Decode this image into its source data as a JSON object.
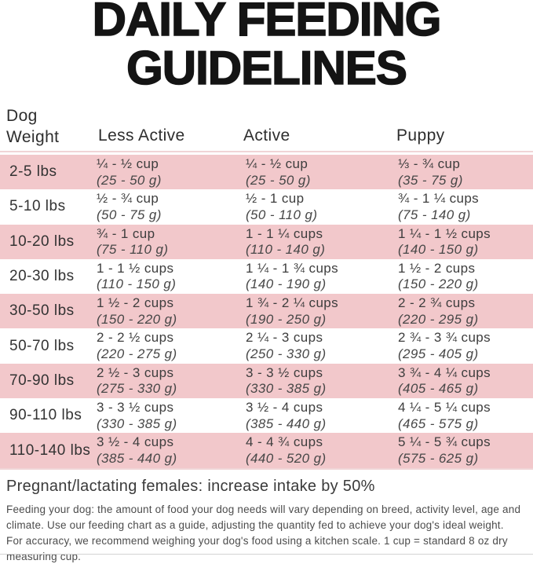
{
  "title": {
    "line1": "DAILY FEEDING",
    "line2": "GUIDELINES"
  },
  "header": {
    "weight_label_line1": "Dog",
    "weight_label_line2": "Weight",
    "columns": [
      "Less Active",
      "Active",
      "Puppy"
    ]
  },
  "table": {
    "rows": [
      {
        "weight": "2-5 lbs",
        "less_active": {
          "cups": "¼ - ½ cup",
          "grams": "(25 - 50 g)"
        },
        "active": {
          "cups": "¼ - ½ cup",
          "grams": "(25 - 50 g)"
        },
        "puppy": {
          "cups": "⅓ - ¾ cup",
          "grams": "(35 - 75 g)"
        }
      },
      {
        "weight": "5-10 lbs",
        "less_active": {
          "cups": "½ - ¾ cup",
          "grams": "(50 - 75 g)"
        },
        "active": {
          "cups": "½ - 1 cup",
          "grams": "(50 - 110 g)"
        },
        "puppy": {
          "cups": "¾ - 1 ¼ cups",
          "grams": "(75 - 140 g)"
        }
      },
      {
        "weight": "10-20 lbs",
        "less_active": {
          "cups": "¾ - 1 cup",
          "grams": "(75 - 110 g)"
        },
        "active": {
          "cups": "1 - 1 ¼ cups",
          "grams": "(110 - 140 g)"
        },
        "puppy": {
          "cups": "1 ¼ - 1 ½ cups",
          "grams": "(140 - 150 g)"
        }
      },
      {
        "weight": "20-30 lbs",
        "less_active": {
          "cups": "1 - 1 ½ cups",
          "grams": "(110 - 150 g)"
        },
        "active": {
          "cups": "1 ¼ - 1 ¾ cups",
          "grams": "(140 - 190 g)"
        },
        "puppy": {
          "cups": "1 ½ - 2 cups",
          "grams": "(150 - 220 g)"
        }
      },
      {
        "weight": "30-50 lbs",
        "less_active": {
          "cups": "1 ½ - 2 cups",
          "grams": "(150 - 220 g)"
        },
        "active": {
          "cups": "1 ¾ - 2 ¼ cups",
          "grams": "(190 - 250 g)"
        },
        "puppy": {
          "cups": "2 - 2 ¾ cups",
          "grams": "(220 - 295 g)"
        }
      },
      {
        "weight": "50-70 lbs",
        "less_active": {
          "cups": "2 - 2 ½ cups",
          "grams": "(220 - 275 g)"
        },
        "active": {
          "cups": "2 ¼ - 3 cups",
          "grams": "(250 - 330 g)"
        },
        "puppy": {
          "cups": "2 ¾ - 3 ¾ cups",
          "grams": "(295 - 405 g)"
        }
      },
      {
        "weight": "70-90 lbs",
        "less_active": {
          "cups": "2 ½ - 3 cups",
          "grams": "(275 - 330 g)"
        },
        "active": {
          "cups": "3 - 3 ½ cups",
          "grams": "(330 - 385 g)"
        },
        "puppy": {
          "cups": "3 ¾ - 4 ¼ cups",
          "grams": "(405 - 465 g)"
        }
      },
      {
        "weight": "90-110 lbs",
        "less_active": {
          "cups": "3 - 3 ½ cups",
          "grams": "(330 - 385 g)"
        },
        "active": {
          "cups": "3 ½ - 4 cups",
          "grams": "(385 - 440 g)"
        },
        "puppy": {
          "cups": "4 ¼ - 5 ¼ cups",
          "grams": "(465 - 575 g)"
        }
      },
      {
        "weight": "110-140 lbs",
        "less_active": {
          "cups": "3 ½ - 4 cups",
          "grams": "(385 - 440 g)"
        },
        "active": {
          "cups": "4 - 4 ¾ cups",
          "grams": "(440 - 520 g)"
        },
        "puppy": {
          "cups": "5 ¼ - 5 ¾ cups",
          "grams": "(575 - 625 g)"
        }
      }
    ]
  },
  "notes": {
    "pregnant": "Pregnant/lactating females: increase intake by 50%",
    "feeding": "Feeding your dog: the amount of food your dog needs will vary depending on breed, activity level, age and climate. Use our feeding chart as a guide, adjusting the quantity fed to achieve your dog's ideal weight.",
    "accuracy": "For accuracy, we recommend weighing your dog's food using a kitchen scale. 1 cup = standard 8 oz dry measuring cup."
  },
  "colors": {
    "row_pink": "#f2c8cb",
    "divider_pink": "#f0d5d7",
    "title_black": "#141414",
    "table_text": "#3d3d3d",
    "note_text": "#4c4c4c"
  }
}
